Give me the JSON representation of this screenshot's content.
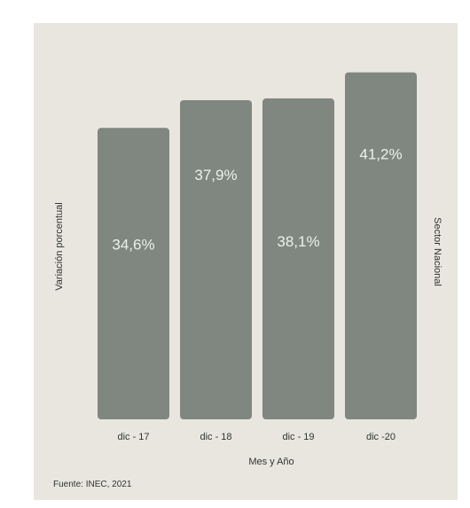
{
  "chart_data": {
    "type": "bar",
    "categories": [
      "dic - 17",
      "dic - 18",
      "dic - 19",
      "dic -20"
    ],
    "values": [
      34.6,
      37.9,
      38.1,
      41.2
    ],
    "value_labels": [
      "34,6%",
      "37,9%",
      "38,1%",
      "41,2%"
    ],
    "xlabel": "Mes y Año",
    "ylabel": "Variación porcentual",
    "right_label": "Sector Nacional",
    "source": "Fuente: INEC, 2021",
    "grid": false,
    "legend": "none",
    "colors": {
      "bar": "#7f8780",
      "bar_label": "#eef0ec",
      "background": "#e9e6df",
      "text": "#2f3430"
    }
  }
}
